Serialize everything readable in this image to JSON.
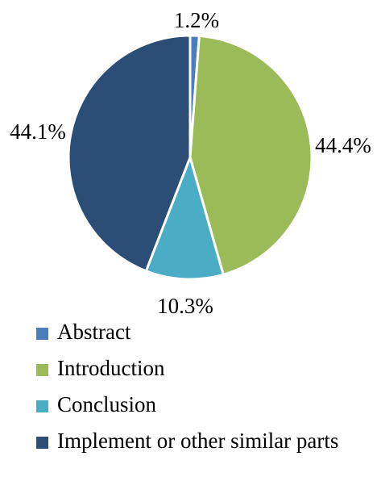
{
  "chart_data": {
    "type": "pie",
    "title": "",
    "legend_position": "bottom",
    "slices": [
      {
        "label": "Abstract",
        "value": 1.2,
        "value_label": "1.2%",
        "color": "#4a7ebb"
      },
      {
        "label": "Introduction",
        "value": 44.4,
        "value_label": "44.4%",
        "color": "#9bbb59"
      },
      {
        "label": "Conclusion",
        "value": 10.3,
        "value_label": "10.3%",
        "color": "#4bacc6"
      },
      {
        "label": "Implement or other similar parts",
        "value": 44.1,
        "value_label": "44.1%",
        "color": "#2c4d75"
      }
    ]
  }
}
